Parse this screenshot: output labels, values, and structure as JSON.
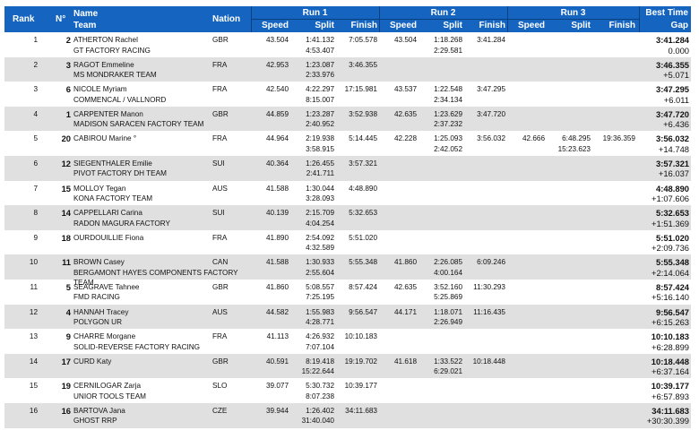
{
  "header": {
    "rank": "Rank",
    "number": "N°",
    "name": "Name",
    "team": "Team",
    "nation": "Nation",
    "run1": "Run 1",
    "run2": "Run 2",
    "run3": "Run 3",
    "speed": "Speed",
    "split": "Split",
    "finish": "Finish",
    "best_time": "Best Time",
    "gap": "Gap"
  },
  "rows": [
    {
      "rank": "1",
      "num": "2",
      "name": "ATHERTON Rachel",
      "team": "GT FACTORY RACING",
      "nation": "GBR",
      "r1": {
        "speed": "43.504",
        "split": "1:41.132",
        "split2": "4:53.407",
        "finish": "7:05.578"
      },
      "r2": {
        "speed": "43.504",
        "split": "1:18.268",
        "split2": "2:29.581",
        "finish": "3:41.284"
      },
      "r3": {
        "speed": "",
        "split": "",
        "split2": "",
        "finish": ""
      },
      "best": "3:41.284",
      "gap": "0.000"
    },
    {
      "rank": "2",
      "num": "3",
      "name": "RAGOT Emmeline",
      "team": "MS MONDRAKER TEAM",
      "nation": "FRA",
      "r1": {
        "speed": "42.953",
        "split": "1:23.087",
        "split2": "2:33.976",
        "finish": "3:46.355"
      },
      "r2": {
        "speed": "",
        "split": "",
        "split2": "",
        "finish": ""
      },
      "r3": {
        "speed": "",
        "split": "",
        "split2": "",
        "finish": ""
      },
      "best": "3:46.355",
      "gap": "+5.071"
    },
    {
      "rank": "3",
      "num": "6",
      "name": "NICOLE Myriam",
      "team": "COMMENCAL / VALLNORD",
      "nation": "FRA",
      "r1": {
        "speed": "42.540",
        "split": "4:22.297",
        "split2": "8:15.007",
        "finish": "17:15.981"
      },
      "r2": {
        "speed": "43.537",
        "split": "1:22.548",
        "split2": "2:34.134",
        "finish": "3:47.295"
      },
      "r3": {
        "speed": "",
        "split": "",
        "split2": "",
        "finish": ""
      },
      "best": "3:47.295",
      "gap": "+6.011"
    },
    {
      "rank": "4",
      "num": "1",
      "name": "CARPENTER Manon",
      "team": "MADISON SARACEN FACTORY TEAM",
      "nation": "GBR",
      "r1": {
        "speed": "44.859",
        "split": "1:23.287",
        "split2": "2:40.952",
        "finish": "3:52.938"
      },
      "r2": {
        "speed": "42.635",
        "split": "1:23.629",
        "split2": "2:37.232",
        "finish": "3:47.720"
      },
      "r3": {
        "speed": "",
        "split": "",
        "split2": "",
        "finish": ""
      },
      "best": "3:47.720",
      "gap": "+6.436"
    },
    {
      "rank": "5",
      "num": "20",
      "name": "CABIROU Marine °",
      "team": "",
      "nation": "FRA",
      "r1": {
        "speed": "44.964",
        "split": "2:19.938",
        "split2": "3:58.915",
        "finish": "5:14.445"
      },
      "r2": {
        "speed": "42.228",
        "split": "1:25.093",
        "split2": "2:42.052",
        "finish": "3:56.032"
      },
      "r3": {
        "speed": "42.666",
        "split": "6:48.295",
        "split2": "15:23.623",
        "finish": "19:36.359"
      },
      "best": "3:56.032",
      "gap": "+14.748"
    },
    {
      "rank": "6",
      "num": "12",
      "name": "SIEGENTHALER Emilie",
      "team": "PIVOT FACTORY DH TEAM",
      "nation": "SUI",
      "r1": {
        "speed": "40.364",
        "split": "1:26.455",
        "split2": "2:41.711",
        "finish": "3:57.321"
      },
      "r2": {
        "speed": "",
        "split": "",
        "split2": "",
        "finish": ""
      },
      "r3": {
        "speed": "",
        "split": "",
        "split2": "",
        "finish": ""
      },
      "best": "3:57.321",
      "gap": "+16.037"
    },
    {
      "rank": "7",
      "num": "15",
      "name": "MOLLOY Tegan",
      "team": "KONA FACTORY TEAM",
      "nation": "AUS",
      "r1": {
        "speed": "41.588",
        "split": "1:30.044",
        "split2": "3:28.093",
        "finish": "4:48.890"
      },
      "r2": {
        "speed": "",
        "split": "",
        "split2": "",
        "finish": ""
      },
      "r3": {
        "speed": "",
        "split": "",
        "split2": "",
        "finish": ""
      },
      "best": "4:48.890",
      "gap": "+1:07.606"
    },
    {
      "rank": "8",
      "num": "14",
      "name": "CAPPELLARI Carina",
      "team": "RADON MAGURA FACTORY",
      "nation": "SUI",
      "r1": {
        "speed": "40.139",
        "split": "2:15.709",
        "split2": "4:04.254",
        "finish": "5:32.653"
      },
      "r2": {
        "speed": "",
        "split": "",
        "split2": "",
        "finish": ""
      },
      "r3": {
        "speed": "",
        "split": "",
        "split2": "",
        "finish": ""
      },
      "best": "5:32.653",
      "gap": "+1:51.369"
    },
    {
      "rank": "9",
      "num": "18",
      "name": "OURDOUILLIE Fiona",
      "team": "",
      "nation": "FRA",
      "r1": {
        "speed": "41.890",
        "split": "2:54.092",
        "split2": "4:32.589",
        "finish": "5:51.020"
      },
      "r2": {
        "speed": "",
        "split": "",
        "split2": "",
        "finish": ""
      },
      "r3": {
        "speed": "",
        "split": "",
        "split2": "",
        "finish": ""
      },
      "best": "5:51.020",
      "gap": "+2:09.736"
    },
    {
      "rank": "10",
      "num": "11",
      "name": "BROWN Casey",
      "team": "BERGAMONT HAYES COMPONENTS FACTORY TEAM",
      "nation": "CAN",
      "r1": {
        "speed": "41.588",
        "split": "1:30.933",
        "split2": "2:55.604",
        "finish": "5:55.348"
      },
      "r2": {
        "speed": "41.860",
        "split": "2:26.085",
        "split2": "4:00.164",
        "finish": "6:09.246"
      },
      "r3": {
        "speed": "",
        "split": "",
        "split2": "",
        "finish": ""
      },
      "best": "5:55.348",
      "gap": "+2:14.064"
    },
    {
      "rank": "11",
      "num": "5",
      "name": "SEAGRAVE Tahnee",
      "team": "FMD RACING",
      "nation": "GBR",
      "r1": {
        "speed": "41.860",
        "split": "5:08.557",
        "split2": "7:25.195",
        "finish": "8:57.424"
      },
      "r2": {
        "speed": "42.635",
        "split": "3:52.160",
        "split2": "5:25.869",
        "finish": "11:30.293"
      },
      "r3": {
        "speed": "",
        "split": "",
        "split2": "",
        "finish": ""
      },
      "best": "8:57.424",
      "gap": "+5:16.140"
    },
    {
      "rank": "12",
      "num": "4",
      "name": "HANNAH Tracey",
      "team": "POLYGON UR",
      "nation": "AUS",
      "r1": {
        "speed": "44.582",
        "split": "1:55.983",
        "split2": "4:28.771",
        "finish": "9:56.547"
      },
      "r2": {
        "speed": "44.171",
        "split": "1:18.071",
        "split2": "2:26.949",
        "finish": "11:16.435"
      },
      "r3": {
        "speed": "",
        "split": "",
        "split2": "",
        "finish": ""
      },
      "best": "9:56.547",
      "gap": "+6:15.263"
    },
    {
      "rank": "13",
      "num": "9",
      "name": "CHARRE Morgane",
      "team": "SOLID-REVERSE FACTORY RACING",
      "nation": "FRA",
      "r1": {
        "speed": "41.113",
        "split": "4:26.932",
        "split2": "7:07.104",
        "finish": "10:10.183"
      },
      "r2": {
        "speed": "",
        "split": "",
        "split2": "",
        "finish": ""
      },
      "r3": {
        "speed": "",
        "split": "",
        "split2": "",
        "finish": ""
      },
      "best": "10:10.183",
      "gap": "+6:28.899"
    },
    {
      "rank": "14",
      "num": "17",
      "name": "CURD Katy",
      "team": "",
      "nation": "GBR",
      "r1": {
        "speed": "40.591",
        "split": "8:19.418",
        "split2": "15:22.644",
        "finish": "19:19.702"
      },
      "r2": {
        "speed": "41.618",
        "split": "1:33.522",
        "split2": "6:29.021",
        "finish": "10:18.448"
      },
      "r3": {
        "speed": "",
        "split": "",
        "split2": "",
        "finish": ""
      },
      "best": "10:18.448",
      "gap": "+6:37.164"
    },
    {
      "rank": "15",
      "num": "19",
      "name": "CERNILOGAR Zarja",
      "team": "UNIOR TOOLS TEAM",
      "nation": "SLO",
      "r1": {
        "speed": "39.077",
        "split": "5:30.732",
        "split2": "8:07.238",
        "finish": "10:39.177"
      },
      "r2": {
        "speed": "",
        "split": "",
        "split2": "",
        "finish": ""
      },
      "r3": {
        "speed": "",
        "split": "",
        "split2": "",
        "finish": ""
      },
      "best": "10:39.177",
      "gap": "+6:57.893"
    },
    {
      "rank": "16",
      "num": "16",
      "name": "BARTOVA Jana",
      "team": "GHOST RRP",
      "nation": "CZE",
      "r1": {
        "speed": "39.944",
        "split": "1:26.402",
        "split2": "31:40.040",
        "finish": "34:11.683"
      },
      "r2": {
        "speed": "",
        "split": "",
        "split2": "",
        "finish": ""
      },
      "r3": {
        "speed": "",
        "split": "",
        "split2": "",
        "finish": ""
      },
      "best": "34:11.683",
      "gap": "+30:30.399"
    }
  ]
}
